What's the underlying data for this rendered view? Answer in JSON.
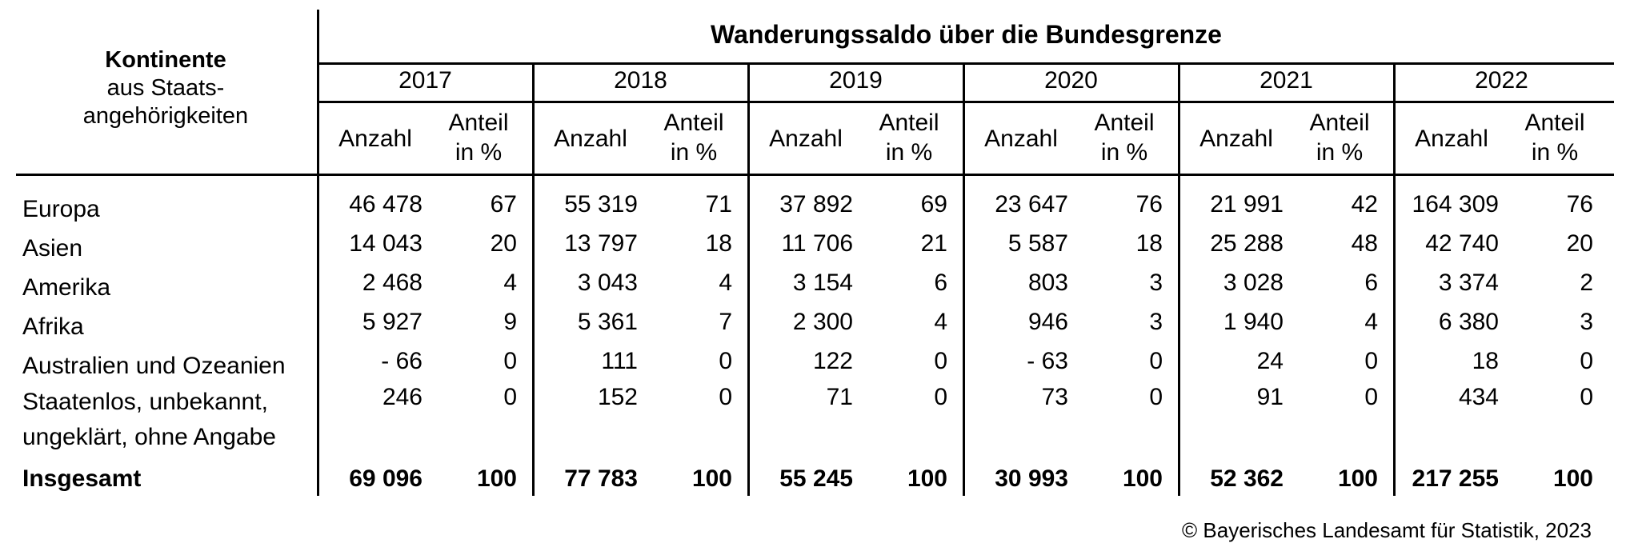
{
  "header": {
    "stub_title": "Kontinente",
    "stub_subtitle_line1": "aus Staats-",
    "stub_subtitle_line2": "angehörigkeiten",
    "main_title": "Wanderungssaldo über die Bundesgrenze",
    "count_label": "Anzahl",
    "share_label_line1": "Anteil",
    "share_label_line2": "in %"
  },
  "years": [
    "2017",
    "2018",
    "2019",
    "2020",
    "2021",
    "2022"
  ],
  "rows": [
    {
      "label": [
        "Europa"
      ],
      "values": [
        [
          "46 478",
          "67"
        ],
        [
          "55 319",
          "71"
        ],
        [
          "37 892",
          "69"
        ],
        [
          "23 647",
          "76"
        ],
        [
          "21 991",
          "42"
        ],
        [
          "164 309",
          "76"
        ]
      ]
    },
    {
      "label": [
        "Asien"
      ],
      "values": [
        [
          "14 043",
          "20"
        ],
        [
          "13 797",
          "18"
        ],
        [
          "11 706",
          "21"
        ],
        [
          "5 587",
          "18"
        ],
        [
          "25 288",
          "48"
        ],
        [
          "42 740",
          "20"
        ]
      ]
    },
    {
      "label": [
        "Amerika"
      ],
      "values": [
        [
          "2 468",
          "4"
        ],
        [
          "3 043",
          "4"
        ],
        [
          "3 154",
          "6"
        ],
        [
          "803",
          "3"
        ],
        [
          "3 028",
          "6"
        ],
        [
          "3 374",
          "2"
        ]
      ]
    },
    {
      "label": [
        "Afrika"
      ],
      "values": [
        [
          "5 927",
          "9"
        ],
        [
          "5 361",
          "7"
        ],
        [
          "2 300",
          "4"
        ],
        [
          "946",
          "3"
        ],
        [
          "1 940",
          "4"
        ],
        [
          "6 380",
          "3"
        ]
      ]
    },
    {
      "label": [
        "Australien und Ozeanien"
      ],
      "values": [
        [
          "-  66",
          "0"
        ],
        [
          "111",
          "0"
        ],
        [
          "122",
          "0"
        ],
        [
          "-  63",
          "0"
        ],
        [
          "24",
          "0"
        ],
        [
          "18",
          "0"
        ]
      ]
    },
    {
      "label": [
        "Staatenlos, unbekannt,",
        "ungeklärt, ohne Angabe"
      ],
      "values": [
        [
          "246",
          "0"
        ],
        [
          "152",
          "0"
        ],
        [
          "71",
          "0"
        ],
        [
          "73",
          "0"
        ],
        [
          "91",
          "0"
        ],
        [
          "434",
          "0"
        ]
      ]
    }
  ],
  "total": {
    "label": "Insgesamt",
    "values": [
      [
        "69 096",
        "100"
      ],
      [
        "77 783",
        "100"
      ],
      [
        "55 245",
        "100"
      ],
      [
        "30 993",
        "100"
      ],
      [
        "52 362",
        "100"
      ],
      [
        "217 255",
        "100"
      ]
    ]
  },
  "footer": "© Bayerisches Landesamt für Statistik, 2023"
}
